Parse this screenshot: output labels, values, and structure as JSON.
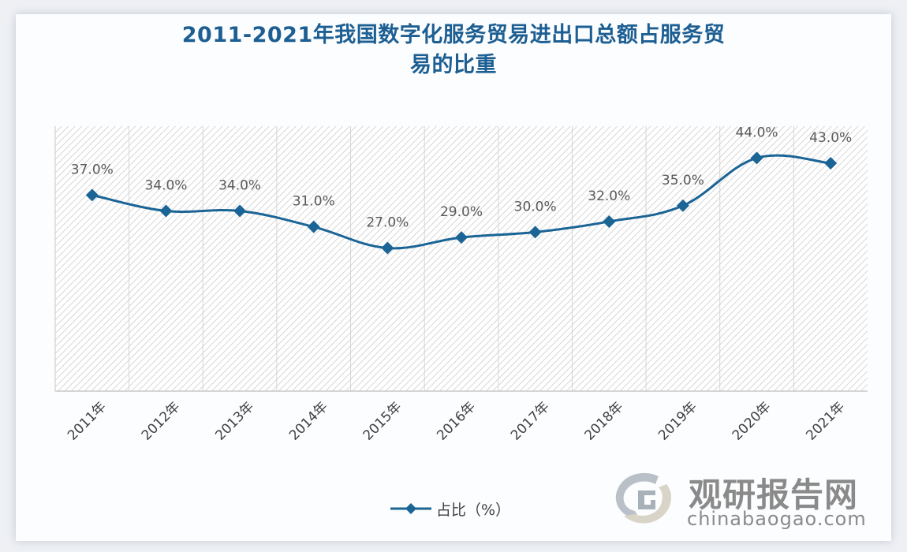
{
  "title": {
    "line1": "2011-2021年我国数字化服务贸易进出口总额占服务贸",
    "line2": "易的比重"
  },
  "legend": {
    "label": "占比（%）",
    "color": "#1a6496"
  },
  "watermark": {
    "cn": "观研报告网",
    "en": "chinabaogao.com"
  },
  "colors": {
    "title": "#1d5f93",
    "line": "#1a6496",
    "grid": "#d4d4d4",
    "hatch": "#d9d9d9"
  },
  "chart_data": {
    "type": "line",
    "title": "2011-2021年我国数字化服务贸易进出口总额占服务贸易的比重",
    "xlabel": "",
    "ylabel": "",
    "categories": [
      "2011年",
      "2012年",
      "2013年",
      "2014年",
      "2015年",
      "2016年",
      "2017年",
      "2018年",
      "2019年",
      "2020年",
      "2021年"
    ],
    "series": [
      {
        "name": "占比（%）",
        "values": [
          37.0,
          34.0,
          34.0,
          31.0,
          27.0,
          29.0,
          30.0,
          32.0,
          35.0,
          44.0,
          43.0
        ],
        "data_labels": [
          "37.0%",
          "34.0%",
          "34.0%",
          "31.0%",
          "27.0%",
          "29.0%",
          "30.0%",
          "32.0%",
          "35.0%",
          "44.0%",
          "43.0%"
        ],
        "marker": "diamond",
        "smooth": true
      }
    ],
    "ylim": [
      0,
      50
    ],
    "y_axis_visible": false,
    "grid": "vertical",
    "legend_position": "bottom"
  }
}
